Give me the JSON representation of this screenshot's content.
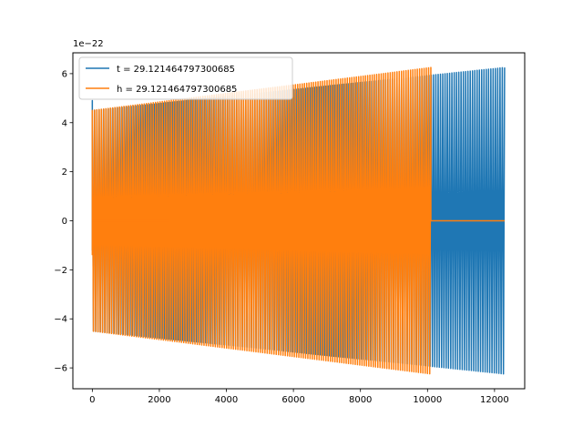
{
  "chart_data": {
    "type": "line",
    "title": "",
    "xlabel": "",
    "ylabel": "",
    "y_offset_label": "1e−22",
    "xlim": [
      -580,
      12900
    ],
    "ylim": [
      -6.85,
      6.85
    ],
    "x_ticks": [
      0,
      2000,
      4000,
      6000,
      8000,
      10000,
      12000
    ],
    "y_ticks": [
      -6,
      -4,
      -2,
      0,
      2,
      4,
      6
    ],
    "legend": "upper-left",
    "grid": false,
    "series": [
      {
        "name": "t = 29.121464797300685",
        "color": "#1f77b4",
        "x_start": 0,
        "x_end": 12300,
        "amp_start": 4.5,
        "amp_end": 6.25,
        "cycles": 180,
        "initial_spike": 4.9,
        "segments": [
          {
            "from": 0,
            "to": 10100,
            "style": "oscillation"
          },
          {
            "from": 10100,
            "to": 12300,
            "style": "oscillation"
          }
        ]
      },
      {
        "name": "h = 29.121464797300685",
        "color": "#ff7f0e",
        "x_start": 0,
        "x_end": 10100,
        "amp_start": 4.5,
        "amp_end": 6.25,
        "cycles": 150,
        "flat_from": 10100,
        "flat_to": 12300,
        "flat_value": 0
      }
    ]
  }
}
